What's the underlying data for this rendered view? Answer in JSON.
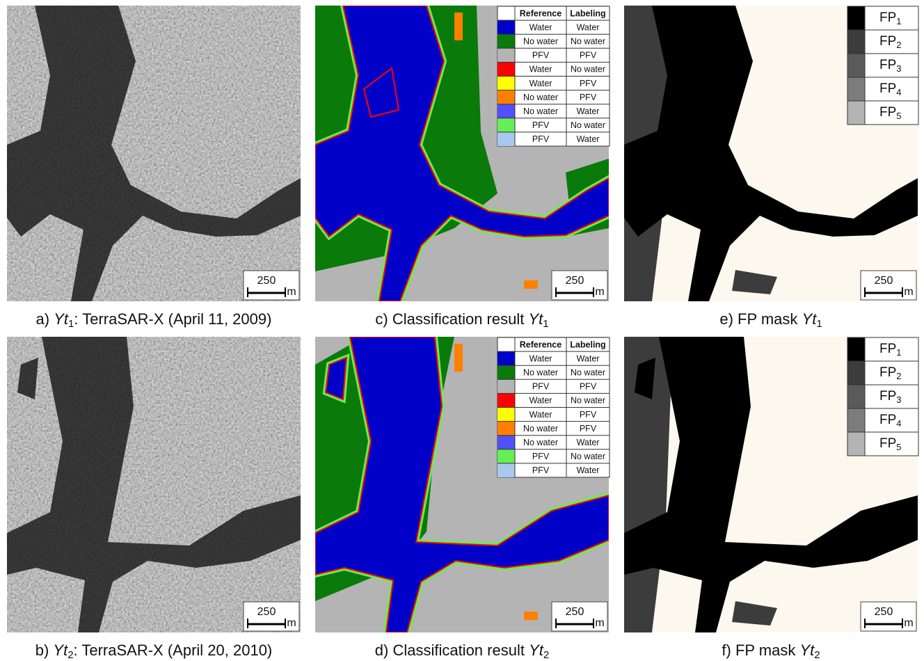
{
  "panels": [
    {
      "prefix": "a) ",
      "var": "Yt",
      "sub": "1",
      "suffix": ": TerraSAR-X (April 11, 2009)"
    },
    {
      "prefix": "b) ",
      "var": "Yt",
      "sub": "2",
      "suffix": ": TerraSAR-X (April 20, 2010)"
    },
    {
      "prefix": "c) Classification result ",
      "var": "Yt",
      "sub": "1"
    },
    {
      "prefix": "d) Classification result ",
      "var": "Yt",
      "sub": "2"
    },
    {
      "prefix": "e) FP mask ",
      "var": "Yt",
      "sub": "1"
    },
    {
      "prefix": "f) FP mask ",
      "var": "Yt",
      "sub": "2"
    }
  ],
  "classification_legend": {
    "header": [
      "Reference",
      "Labeling"
    ],
    "rows": [
      {
        "color": "#0000c8",
        "reference": "Water",
        "labeling": "Water"
      },
      {
        "color": "#0a7a0a",
        "reference": "No water",
        "labeling": "No water"
      },
      {
        "color": "#b4b4b4",
        "reference": "PFV",
        "labeling": "PFV"
      },
      {
        "color": "#ff0000",
        "reference": "Water",
        "labeling": "No water"
      },
      {
        "color": "#ffff00",
        "reference": "Water",
        "labeling": "PFV"
      },
      {
        "color": "#ff8000",
        "reference": "No water",
        "labeling": "PFV"
      },
      {
        "color": "#5050ff",
        "reference": "No water",
        "labeling": "Water"
      },
      {
        "color": "#66ee55",
        "reference": "PFV",
        "labeling": "No water"
      },
      {
        "color": "#a8c8f0",
        "reference": "PFV",
        "labeling": "Water"
      }
    ]
  },
  "fp_legend": {
    "rows": [
      {
        "color": "#000000",
        "label": "FP",
        "sub": "1"
      },
      {
        "color": "#3c3c3c",
        "label": "FP",
        "sub": "2"
      },
      {
        "color": "#5a5a5a",
        "label": "FP",
        "sub": "3"
      },
      {
        "color": "#7c7c7c",
        "label": "FP",
        "sub": "4"
      },
      {
        "color": "#b4b4b4",
        "label": "FP",
        "sub": "5"
      }
    ]
  },
  "scale_bar": {
    "length": 250,
    "unit": "m"
  }
}
